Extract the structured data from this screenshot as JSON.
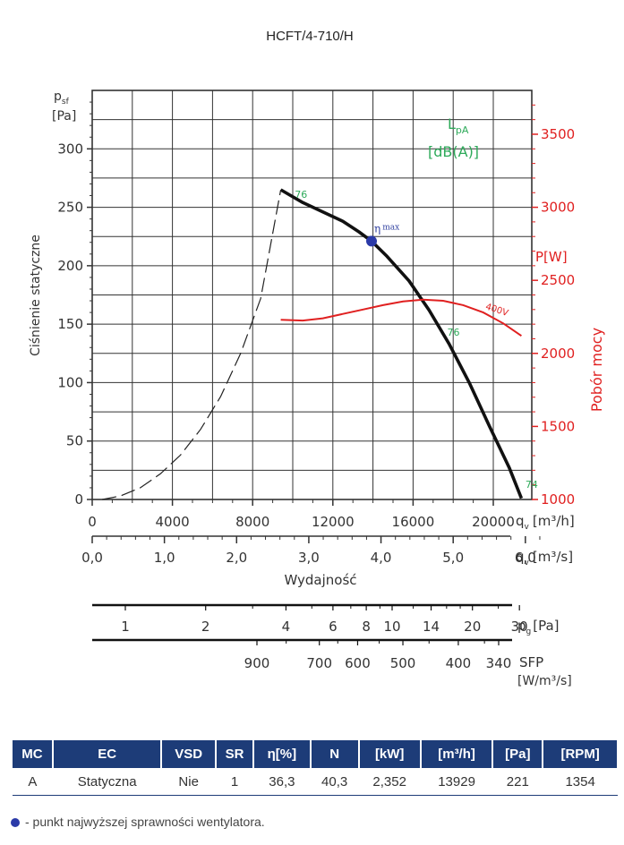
{
  "title": "HCFT/4-710/H",
  "chart_data": {
    "type": "line",
    "title": "HCFT/4-710/H",
    "xlabel": "Wydajność",
    "ylabel": "Ciśnienie statyczne",
    "y_unit_sym": "p",
    "y_unit_sub": "sf",
    "y_unit": "[Pa]",
    "y_ticks": [
      0,
      50,
      100,
      150,
      200,
      250,
      300
    ],
    "ylim": [
      0,
      350
    ],
    "x_ticks_m3h": [
      0,
      4000,
      8000,
      12000,
      16000,
      20000
    ],
    "xlim_m3h": [
      0,
      22000
    ],
    "x_unit_sym": "q",
    "x_unit_sub": "v",
    "x_unit_m3h": "[m³/h]",
    "x_ticks_m3s": [
      "0,0",
      "1,0",
      "2,0",
      "3,0",
      "4,0",
      "5,0",
      "6,0"
    ],
    "x_unit_m3s": "[m³/s]",
    "y2_label": "Pobór mocy",
    "y2_unit": "P[W]",
    "y2_ticks": [
      1000,
      1500,
      2000,
      2500,
      3000,
      3500
    ],
    "y2lim": [
      1000,
      3800
    ],
    "lpa_label": "L",
    "lpa_sub": "pA",
    "lpa_unit": "[dB(A)]",
    "series": [
      {
        "name": "pressure",
        "points": [
          [
            9400,
            265
          ],
          [
            10500,
            254
          ],
          [
            11500,
            246
          ],
          [
            12500,
            238
          ],
          [
            13300,
            229
          ],
          [
            13929,
            221
          ],
          [
            14700,
            208
          ],
          [
            15800,
            187
          ],
          [
            16800,
            162
          ],
          [
            17800,
            133
          ],
          [
            18800,
            100
          ],
          [
            19800,
            63
          ],
          [
            20800,
            27
          ],
          [
            21400,
            1
          ]
        ]
      },
      {
        "name": "stall",
        "points": [
          [
            500,
            0
          ],
          [
            1400,
            3
          ],
          [
            2400,
            10
          ],
          [
            3400,
            22
          ],
          [
            4400,
            38
          ],
          [
            5400,
            60
          ],
          [
            6400,
            88
          ],
          [
            7400,
            125
          ],
          [
            8400,
            172
          ],
          [
            9400,
            265
          ]
        ]
      },
      {
        "name": "power 400V",
        "label": "400V",
        "points": [
          [
            9400,
            2230
          ],
          [
            10500,
            2225
          ],
          [
            11500,
            2240
          ],
          [
            12500,
            2270
          ],
          [
            13500,
            2300
          ],
          [
            14500,
            2330
          ],
          [
            15500,
            2355
          ],
          [
            16500,
            2368
          ],
          [
            17500,
            2360
          ],
          [
            18500,
            2330
          ],
          [
            19500,
            2280
          ],
          [
            20500,
            2205
          ],
          [
            21400,
            2120
          ]
        ]
      }
    ],
    "annotations": [
      {
        "text": "76",
        "x": 10100,
        "y": 258,
        "kind": "lpa"
      },
      {
        "text": "76",
        "x": 17700,
        "y": 140,
        "kind": "lpa"
      },
      {
        "text": "74",
        "x": 21600,
        "y": 10,
        "kind": "lpa"
      }
    ],
    "eta_max": {
      "label_sym": "η",
      "label_sub": "max",
      "x": 13929,
      "y": 221
    },
    "pg_scale": {
      "ticks": [
        "1",
        "2",
        "4",
        "6",
        "8",
        "10",
        "14",
        "20",
        "30"
      ],
      "values": [
        1,
        2,
        4,
        6,
        8,
        10,
        14,
        20,
        30
      ],
      "unit_sym": "p",
      "unit_sub": "g",
      "unit": "[Pa]"
    },
    "sfp_scale": {
      "ticks": [
        "900",
        "700",
        "600",
        "500",
        "400",
        "340"
      ],
      "values": [
        900,
        700,
        600,
        500,
        400,
        340
      ],
      "label": "SFP",
      "unit": "[W/m³/s]"
    }
  },
  "table": {
    "headers": [
      "MC",
      "EC",
      "VSD",
      "SR",
      "η[%]",
      "N",
      "[kW]",
      "[m³/h]",
      "[Pa]",
      "[RPM]"
    ],
    "row": [
      "A",
      "Statyczna",
      "Nie",
      "1",
      "36,3",
      "40,3",
      "2,352",
      "13929",
      "221",
      "1354"
    ]
  },
  "footnote": "- punkt najwyższej sprawności wentylatora.",
  "colors": {
    "pressure": "#111111",
    "power": "#e02020",
    "lpa": "#2eaa5a",
    "eta": "#2b3aa8",
    "header": "#1d3c78"
  }
}
